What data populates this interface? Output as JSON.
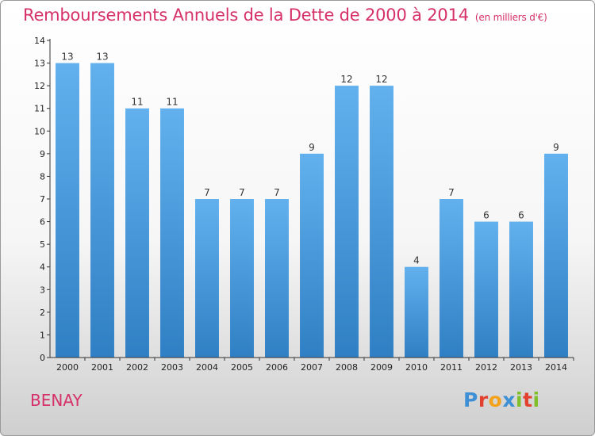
{
  "header": {
    "title": "Remboursements Annuels de la Dette de 2000 à 2014",
    "unit": "(en milliers d'€)"
  },
  "footer": {
    "commune": "BENAY",
    "logo": [
      {
        "char": "P",
        "color": "#3d8fd6"
      },
      {
        "char": "r",
        "color": "#e2412f"
      },
      {
        "char": "o",
        "color": "#f2a21c"
      },
      {
        "char": "x",
        "color": "#3d8fd6"
      },
      {
        "char": "i",
        "color": "#7fbf2a"
      },
      {
        "char": "t",
        "color": "#e2412f"
      },
      {
        "char": "i",
        "color": "#7fbf2a"
      }
    ]
  },
  "colors": {
    "title": "#d6306a",
    "bar_top": "#62b1ee",
    "bar_bottom": "#2f7fc4",
    "axis": "#333333"
  },
  "chart_data": {
    "type": "bar",
    "title": "Remboursements Annuels de la Dette de 2000 à 2014",
    "ylabel": "en milliers d'€",
    "xlabel": "",
    "categories": [
      "2000",
      "2001",
      "2002",
      "2003",
      "2004",
      "2005",
      "2006",
      "2007",
      "2008",
      "2009",
      "2010",
      "2011",
      "2012",
      "2013",
      "2014"
    ],
    "values": [
      13,
      13,
      11,
      11,
      7,
      7,
      7,
      9,
      12,
      12,
      4,
      7,
      6,
      6,
      9
    ],
    "data_labels": [
      "13",
      "13",
      "11",
      "11",
      "7",
      "7",
      "7",
      "9",
      "12",
      "12",
      "4",
      "7",
      "6",
      "6",
      "9"
    ],
    "yticks": [
      0,
      1,
      2,
      3,
      4,
      5,
      6,
      7,
      8,
      9,
      10,
      11,
      12,
      13,
      14
    ],
    "ytick_labels": [
      "0",
      "1",
      "2",
      "3",
      "4",
      "5",
      "6",
      "7",
      "8",
      "9",
      "10",
      "11",
      "12",
      "13",
      "14"
    ],
    "ylim": [
      0,
      14
    ],
    "grid": false,
    "legend": "none"
  }
}
